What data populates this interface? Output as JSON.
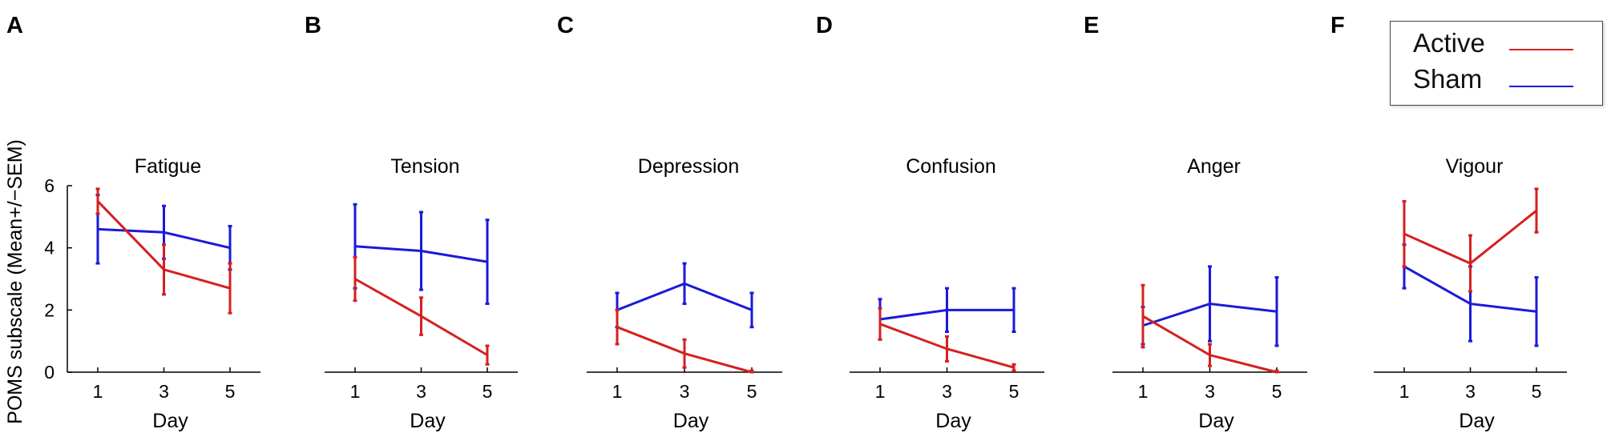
{
  "legend": {
    "active_label": "Active",
    "sham_label": "Sham"
  },
  "colors": {
    "active": "#d42020",
    "sham": "#1a1adb",
    "axis": "#000000"
  },
  "y_axis_label": "POMS subscale (Mean+/−SEM)",
  "chart_data": [
    {
      "type": "line",
      "panel_letter": "A",
      "title": "Fatigue",
      "xlabel": "Day",
      "x": [
        1,
        3,
        5
      ],
      "ylim": [
        0,
        6
      ],
      "yticks": [
        0,
        2,
        4,
        6
      ],
      "series": [
        {
          "name": "Active",
          "values": [
            5.5,
            3.3,
            2.7
          ],
          "err": [
            0.4,
            0.8,
            0.8
          ]
        },
        {
          "name": "Sham",
          "values": [
            4.6,
            4.5,
            4.0
          ],
          "err": [
            1.1,
            0.85,
            0.7
          ]
        }
      ]
    },
    {
      "type": "line",
      "panel_letter": "B",
      "title": "Tension",
      "xlabel": "Day",
      "x": [
        1,
        3,
        5
      ],
      "ylim": [
        0,
        6
      ],
      "series": [
        {
          "name": "Active",
          "values": [
            3.0,
            1.8,
            0.55
          ],
          "err": [
            0.7,
            0.6,
            0.3
          ]
        },
        {
          "name": "Sham",
          "values": [
            4.05,
            3.9,
            3.55
          ],
          "err": [
            1.35,
            1.25,
            1.35
          ]
        }
      ]
    },
    {
      "type": "line",
      "panel_letter": "C",
      "title": "Depression",
      "xlabel": "Day",
      "x": [
        1,
        3,
        5
      ],
      "ylim": [
        0,
        6
      ],
      "series": [
        {
          "name": "Active",
          "values": [
            1.45,
            0.6,
            0.0
          ],
          "err": [
            0.55,
            0.45,
            0.05
          ]
        },
        {
          "name": "Sham",
          "values": [
            2.0,
            2.85,
            2.0
          ],
          "err": [
            0.55,
            0.65,
            0.55
          ]
        }
      ]
    },
    {
      "type": "line",
      "panel_letter": "D",
      "title": "Confusion",
      "xlabel": "Day",
      "x": [
        1,
        3,
        5
      ],
      "ylim": [
        0,
        6
      ],
      "series": [
        {
          "name": "Active",
          "values": [
            1.55,
            0.75,
            0.15
          ],
          "err": [
            0.5,
            0.4,
            0.1
          ]
        },
        {
          "name": "Sham",
          "values": [
            1.7,
            2.0,
            2.0
          ],
          "err": [
            0.65,
            0.7,
            0.7
          ]
        }
      ]
    },
    {
      "type": "line",
      "panel_letter": "E",
      "title": "Anger",
      "xlabel": "Day",
      "x": [
        1,
        3,
        5
      ],
      "ylim": [
        0,
        6
      ],
      "series": [
        {
          "name": "Active",
          "values": [
            1.8,
            0.55,
            0.0
          ],
          "err": [
            1.0,
            0.35,
            0.05
          ]
        },
        {
          "name": "Sham",
          "values": [
            1.5,
            2.2,
            1.95
          ],
          "err": [
            0.6,
            1.2,
            1.1
          ]
        }
      ]
    },
    {
      "type": "line",
      "panel_letter": "F",
      "title": "Vigour",
      "xlabel": "Day",
      "x": [
        1,
        3,
        5
      ],
      "ylim": [
        0,
        6
      ],
      "series": [
        {
          "name": "Active",
          "values": [
            4.45,
            3.5,
            5.2
          ],
          "err": [
            1.05,
            0.9,
            0.7
          ]
        },
        {
          "name": "Sham",
          "values": [
            3.4,
            2.2,
            1.95
          ],
          "err": [
            0.7,
            1.2,
            1.1
          ]
        }
      ]
    }
  ]
}
